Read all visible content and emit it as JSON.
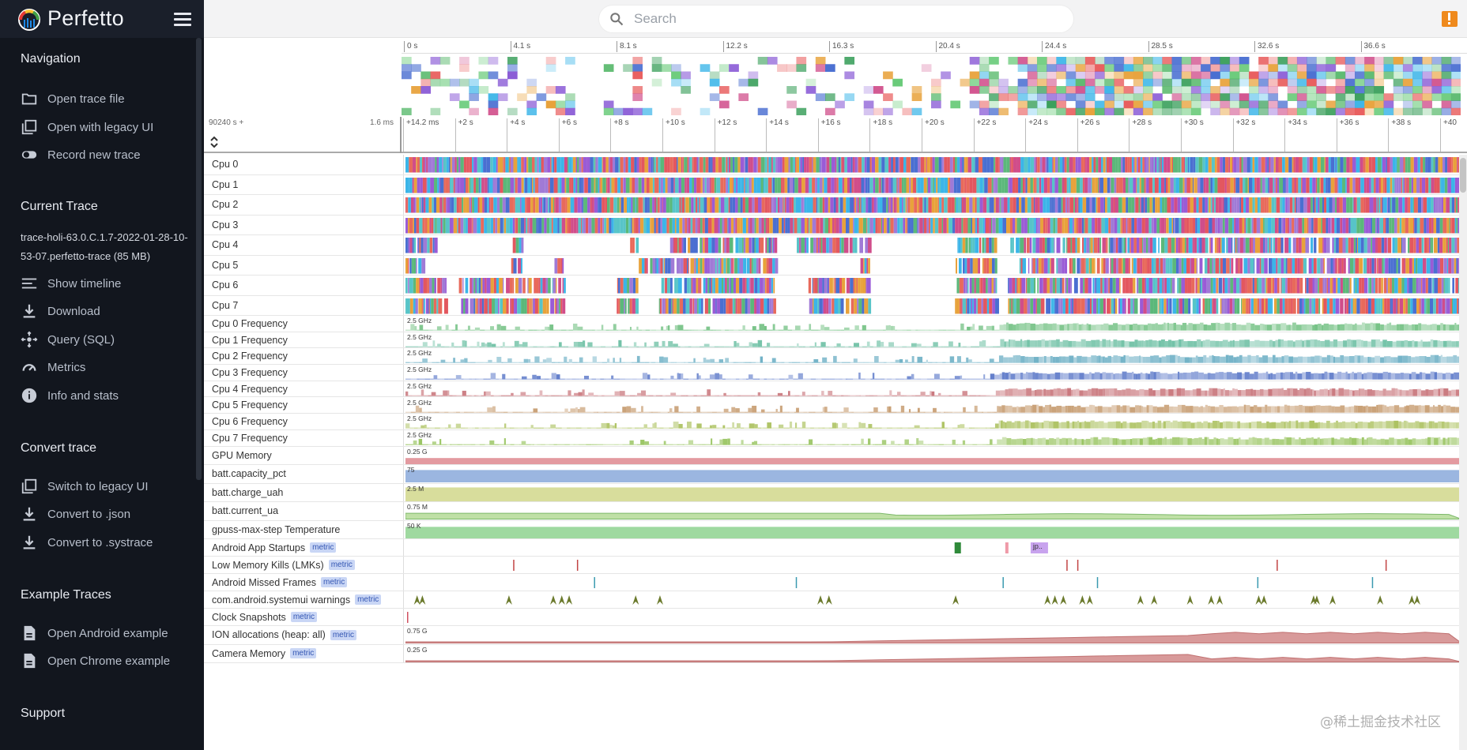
{
  "app": {
    "name": "Perfetto"
  },
  "sidebar": {
    "sections": [
      {
        "title": "Navigation",
        "items": [
          {
            "label": "Open trace file",
            "icon": "folder-icon"
          },
          {
            "label": "Open with legacy UI",
            "icon": "filter-none-icon"
          },
          {
            "label": "Record new trace",
            "icon": "toggle-icon"
          }
        ]
      },
      {
        "title": "Current Trace",
        "trace_name": "trace-holi-63.0.C.1.7-2022-01-28-10-53-07.perfetto-trace (85 MB)",
        "items": [
          {
            "label": "Show timeline",
            "icon": "timeline-icon"
          },
          {
            "label": "Download",
            "icon": "download-icon"
          },
          {
            "label": "Query (SQL)",
            "icon": "query-icon"
          },
          {
            "label": "Metrics",
            "icon": "speed-icon"
          },
          {
            "label": "Info and stats",
            "icon": "info-icon"
          }
        ]
      },
      {
        "title": "Convert trace",
        "items": [
          {
            "label": "Switch to legacy UI",
            "icon": "filter-none-icon"
          },
          {
            "label": "Convert to .json",
            "icon": "download-icon"
          },
          {
            "label": "Convert to .systrace",
            "icon": "download-icon"
          }
        ]
      },
      {
        "title": "Example Traces",
        "items": [
          {
            "label": "Open Android example",
            "icon": "description-icon"
          },
          {
            "label": "Open Chrome example",
            "icon": "description-icon"
          }
        ]
      },
      {
        "title": "Support",
        "items": []
      }
    ]
  },
  "search": {
    "placeholder": "Search"
  },
  "overview_ticks": [
    "0 s",
    "4.1 s",
    "8.1 s",
    "12.2 s",
    "16.3 s",
    "20.4 s",
    "24.4 s",
    "28.5 s",
    "32.6 s",
    "36.6 s"
  ],
  "timeline": {
    "offset_label": "90240 s +",
    "scale_label": "1.6 ms",
    "ticks": [
      "+14.2 ms",
      "+2 s",
      "+4 s",
      "+6 s",
      "+8 s",
      "+10 s",
      "+12 s",
      "+14 s",
      "+16 s",
      "+18 s",
      "+20 s",
      "+22 s",
      "+24 s",
      "+26 s",
      "+28 s",
      "+30 s",
      "+32 s",
      "+34 s",
      "+36 s",
      "+38 s",
      "+40"
    ]
  },
  "tracks": [
    {
      "name": "Cpu 0",
      "kind": "cpu",
      "activity": [
        [
          0,
          1
        ]
      ]
    },
    {
      "name": "Cpu 1",
      "kind": "cpu",
      "activity": [
        [
          0,
          1
        ]
      ]
    },
    {
      "name": "Cpu 2",
      "kind": "cpu",
      "activity": [
        [
          0,
          1
        ]
      ]
    },
    {
      "name": "Cpu 3",
      "kind": "cpu",
      "activity": [
        [
          0,
          1
        ]
      ]
    },
    {
      "name": "Cpu 4",
      "kind": "cpu-sparse",
      "activity": [
        [
          0.0,
          0.03
        ],
        [
          0.1,
          0.11
        ],
        [
          0.21,
          0.22
        ],
        [
          0.25,
          0.35
        ],
        [
          0.37,
          0.44
        ],
        [
          0.52,
          0.56
        ],
        [
          0.57,
          1.0
        ]
      ]
    },
    {
      "name": "Cpu 5",
      "kind": "cpu-sparse",
      "activity": [
        [
          0.0,
          0.02
        ],
        [
          0.1,
          0.11
        ],
        [
          0.14,
          0.15
        ],
        [
          0.22,
          0.35
        ],
        [
          0.43,
          0.44
        ],
        [
          0.52,
          0.56
        ],
        [
          0.58,
          1.0
        ]
      ]
    },
    {
      "name": "Cpu 6",
      "kind": "cpu-sparse",
      "activity": [
        [
          0.0,
          0.04
        ],
        [
          0.05,
          0.15
        ],
        [
          0.2,
          0.22
        ],
        [
          0.24,
          0.35
        ],
        [
          0.38,
          0.44
        ],
        [
          0.52,
          0.56
        ],
        [
          0.57,
          1.0
        ]
      ]
    },
    {
      "name": "Cpu 7",
      "kind": "cpu-sparse",
      "activity": [
        [
          0.0,
          0.04
        ],
        [
          0.05,
          0.15
        ],
        [
          0.2,
          0.22
        ],
        [
          0.24,
          0.35
        ],
        [
          0.38,
          0.44
        ],
        [
          0.52,
          0.56
        ],
        [
          0.57,
          1.0
        ]
      ]
    },
    {
      "name": "Cpu 0 Frequency",
      "kind": "freq",
      "scale": "2.5 GHz",
      "color": "#6fbf80",
      "activity": [
        [
          0,
          1
        ]
      ]
    },
    {
      "name": "Cpu 1 Frequency",
      "kind": "freq",
      "scale": "2.5 GHz",
      "color": "#6cbfa3",
      "activity": [
        [
          0,
          1
        ]
      ]
    },
    {
      "name": "Cpu 2 Frequency",
      "kind": "freq",
      "scale": "2.5 GHz",
      "color": "#6aaec4",
      "activity": [
        [
          0,
          1
        ]
      ]
    },
    {
      "name": "Cpu 3 Frequency",
      "kind": "freq",
      "scale": "2.5 GHz",
      "color": "#5b78c8",
      "activity": [
        [
          0,
          1
        ]
      ]
    },
    {
      "name": "Cpu 4 Frequency",
      "kind": "freq",
      "scale": "2.5 GHz",
      "color": "#c66f75",
      "activity": [
        [
          0,
          1
        ]
      ]
    },
    {
      "name": "Cpu 5 Frequency",
      "kind": "freq",
      "scale": "2.5 GHz",
      "color": "#c69b6f",
      "activity": [
        [
          0,
          1
        ]
      ]
    },
    {
      "name": "Cpu 6 Frequency",
      "kind": "freq",
      "scale": "2.5 GHz",
      "color": "#a9bf5a",
      "activity": [
        [
          0,
          1
        ]
      ]
    },
    {
      "name": "Cpu 7 Frequency",
      "kind": "freq",
      "scale": "2.5 GHz",
      "color": "#95c25b",
      "activity": [
        [
          0,
          1
        ]
      ]
    },
    {
      "name": "GPU Memory",
      "kind": "counter",
      "scale": "0.25 G",
      "color": "#e39aa0",
      "level": 0.35
    },
    {
      "name": "batt.capacity_pct",
      "kind": "counter",
      "scale": "75",
      "color": "#9bb6e0",
      "level": 0.75
    },
    {
      "name": "batt.charge_uah",
      "kind": "counter",
      "scale": "2.5 M",
      "color": "#d8dd9c",
      "level": 0.85
    },
    {
      "name": "batt.current_ua",
      "kind": "counter-wave",
      "scale": "0.75 M",
      "color": "#bfe0a6",
      "level": 0.3
    },
    {
      "name": "gpuss-max-step Temperature",
      "kind": "counter",
      "scale": "50 K",
      "color": "#9fd9a0",
      "level": 0.7
    },
    {
      "name": "Android App Startups",
      "badge": "metric",
      "kind": "events",
      "color": "#2f8a3a",
      "label": "jp.."
    },
    {
      "name": "Low Memory Kills (LMKs)",
      "badge": "metric",
      "kind": "ticks",
      "color": "#c24444"
    },
    {
      "name": "Android Missed Frames",
      "badge": "metric",
      "kind": "ticks",
      "color": "#3a9ab0"
    },
    {
      "name": "com.android.systemui warnings",
      "badge": "metric",
      "kind": "chevrons",
      "color": "#6b7a2c"
    },
    {
      "name": "Clock Snapshots",
      "badge": "metric",
      "kind": "ticks",
      "color": "#d05060"
    },
    {
      "name": "ION allocations (heap: all)",
      "badge": "metric",
      "kind": "counter-rise",
      "scale": "0.75 G",
      "color": "#d89a9a",
      "level": 0.6
    },
    {
      "name": "Camera Memory",
      "badge": "metric",
      "kind": "counter-rise",
      "scale": "0.25 G",
      "color": "#d89a9a",
      "level": 0.2
    }
  ],
  "watermark": "@稀土掘金技术社区"
}
